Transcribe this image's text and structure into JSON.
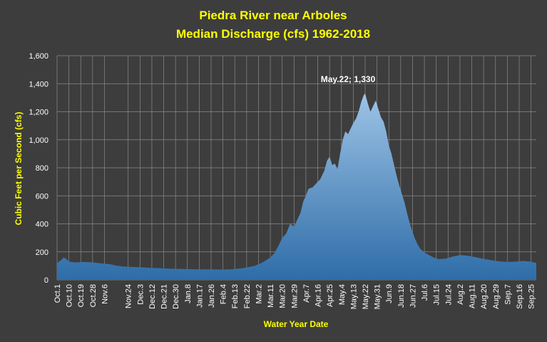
{
  "chart_data": {
    "type": "area",
    "title_line1": "Piedra River near Arboles",
    "title_line2": "Median Discharge (cfs) 1962-2018",
    "xlabel": "Water Year Date",
    "ylabel": "Cubic Feet per Second (cfs)",
    "ylim": [
      0,
      1600
    ],
    "yticks": [
      0,
      200,
      400,
      600,
      800,
      1000,
      1200,
      1400,
      1600
    ],
    "ytick_labels": [
      "0",
      "200",
      "400",
      "600",
      "800",
      "1,000",
      "1,200",
      "1,400",
      "1,600"
    ],
    "xticks": [
      {
        "day": 0,
        "label": "Oct.1"
      },
      {
        "day": 9,
        "label": "Oct.10"
      },
      {
        "day": 18,
        "label": "Oct.19"
      },
      {
        "day": 27,
        "label": "Oct.28"
      },
      {
        "day": 36,
        "label": "Nov.6"
      },
      {
        "day": 54,
        "label": "Nov.24"
      },
      {
        "day": 63,
        "label": "Dec.3"
      },
      {
        "day": 72,
        "label": "Dec.12"
      },
      {
        "day": 81,
        "label": "Dec.21"
      },
      {
        "day": 90,
        "label": "Dec.30"
      },
      {
        "day": 99,
        "label": "Jan.8"
      },
      {
        "day": 108,
        "label": "Jan.17"
      },
      {
        "day": 117,
        "label": "Jan.26"
      },
      {
        "day": 126,
        "label": "Feb.4"
      },
      {
        "day": 135,
        "label": "Feb.13"
      },
      {
        "day": 144,
        "label": "Feb.22"
      },
      {
        "day": 153,
        "label": "Mar.2"
      },
      {
        "day": 162,
        "label": "Mar.11"
      },
      {
        "day": 171,
        "label": "Mar.20"
      },
      {
        "day": 180,
        "label": "Mar.29"
      },
      {
        "day": 189,
        "label": "Apr.7"
      },
      {
        "day": 198,
        "label": "Apr.16"
      },
      {
        "day": 207,
        "label": "Apr.25"
      },
      {
        "day": 216,
        "label": "May.4"
      },
      {
        "day": 225,
        "label": "May.13"
      },
      {
        "day": 234,
        "label": "May.22"
      },
      {
        "day": 243,
        "label": "May.31"
      },
      {
        "day": 252,
        "label": "Jun.9"
      },
      {
        "day": 261,
        "label": "Jun.18"
      },
      {
        "day": 270,
        "label": "Jun.27"
      },
      {
        "day": 279,
        "label": "Jul.6"
      },
      {
        "day": 288,
        "label": "Jul.15"
      },
      {
        "day": 297,
        "label": "Jul.24"
      },
      {
        "day": 306,
        "label": "Aug.2"
      },
      {
        "day": 315,
        "label": "Aug.11"
      },
      {
        "day": 324,
        "label": "Aug.20"
      },
      {
        "day": 333,
        "label": "Aug.29"
      },
      {
        "day": 342,
        "label": "Sep.7"
      },
      {
        "day": 351,
        "label": "Sep.16"
      },
      {
        "day": 360,
        "label": "Sep.25"
      }
    ],
    "xdays": 365,
    "points": [
      [
        0,
        120
      ],
      [
        3,
        140
      ],
      [
        5,
        160
      ],
      [
        7,
        150
      ],
      [
        9,
        130
      ],
      [
        14,
        125
      ],
      [
        20,
        128
      ],
      [
        27,
        125
      ],
      [
        33,
        118
      ],
      [
        40,
        112
      ],
      [
        45,
        102
      ],
      [
        50,
        96
      ],
      [
        56,
        93
      ],
      [
        63,
        90
      ],
      [
        70,
        86
      ],
      [
        77,
        84
      ],
      [
        85,
        80
      ],
      [
        95,
        78
      ],
      [
        105,
        76
      ],
      [
        115,
        75
      ],
      [
        125,
        74
      ],
      [
        133,
        76
      ],
      [
        140,
        82
      ],
      [
        145,
        90
      ],
      [
        150,
        100
      ],
      [
        154,
        115
      ],
      [
        158,
        135
      ],
      [
        162,
        160
      ],
      [
        165,
        190
      ],
      [
        168,
        240
      ],
      [
        171,
        300
      ],
      [
        174,
        330
      ],
      [
        177,
        400
      ],
      [
        180,
        380
      ],
      [
        182,
        420
      ],
      [
        185,
        480
      ],
      [
        187,
        560
      ],
      [
        189,
        600
      ],
      [
        191,
        650
      ],
      [
        194,
        660
      ],
      [
        197,
        690
      ],
      [
        200,
        720
      ],
      [
        203,
        780
      ],
      [
        205,
        850
      ],
      [
        207,
        880
      ],
      [
        209,
        820
      ],
      [
        211,
        830
      ],
      [
        213,
        790
      ],
      [
        215,
        900
      ],
      [
        217,
        1000
      ],
      [
        219,
        1060
      ],
      [
        221,
        1040
      ],
      [
        223,
        1080
      ],
      [
        225,
        1120
      ],
      [
        227,
        1150
      ],
      [
        229,
        1200
      ],
      [
        231,
        1270
      ],
      [
        233,
        1320
      ],
      [
        234,
        1330
      ],
      [
        236,
        1260
      ],
      [
        238,
        1200
      ],
      [
        240,
        1240
      ],
      [
        242,
        1280
      ],
      [
        244,
        1220
      ],
      [
        246,
        1160
      ],
      [
        248,
        1130
      ],
      [
        250,
        1060
      ],
      [
        252,
        960
      ],
      [
        254,
        900
      ],
      [
        256,
        820
      ],
      [
        258,
        740
      ],
      [
        260,
        670
      ],
      [
        262,
        610
      ],
      [
        264,
        550
      ],
      [
        266,
        470
      ],
      [
        268,
        400
      ],
      [
        270,
        340
      ],
      [
        272,
        290
      ],
      [
        274,
        250
      ],
      [
        276,
        220
      ],
      [
        278,
        205
      ],
      [
        280,
        190
      ],
      [
        283,
        175
      ],
      [
        286,
        160
      ],
      [
        290,
        148
      ],
      [
        295,
        152
      ],
      [
        300,
        165
      ],
      [
        306,
        178
      ],
      [
        312,
        172
      ],
      [
        318,
        162
      ],
      [
        324,
        150
      ],
      [
        330,
        140
      ],
      [
        336,
        132
      ],
      [
        342,
        128
      ],
      [
        348,
        130
      ],
      [
        354,
        135
      ],
      [
        360,
        130
      ],
      [
        364,
        120
      ]
    ],
    "annotation": {
      "text": "May.22; 1,330",
      "day": 234,
      "value": 1330
    },
    "fill_colors": [
      "#9dc3e6",
      "#2e6da8"
    ],
    "grid": true
  }
}
